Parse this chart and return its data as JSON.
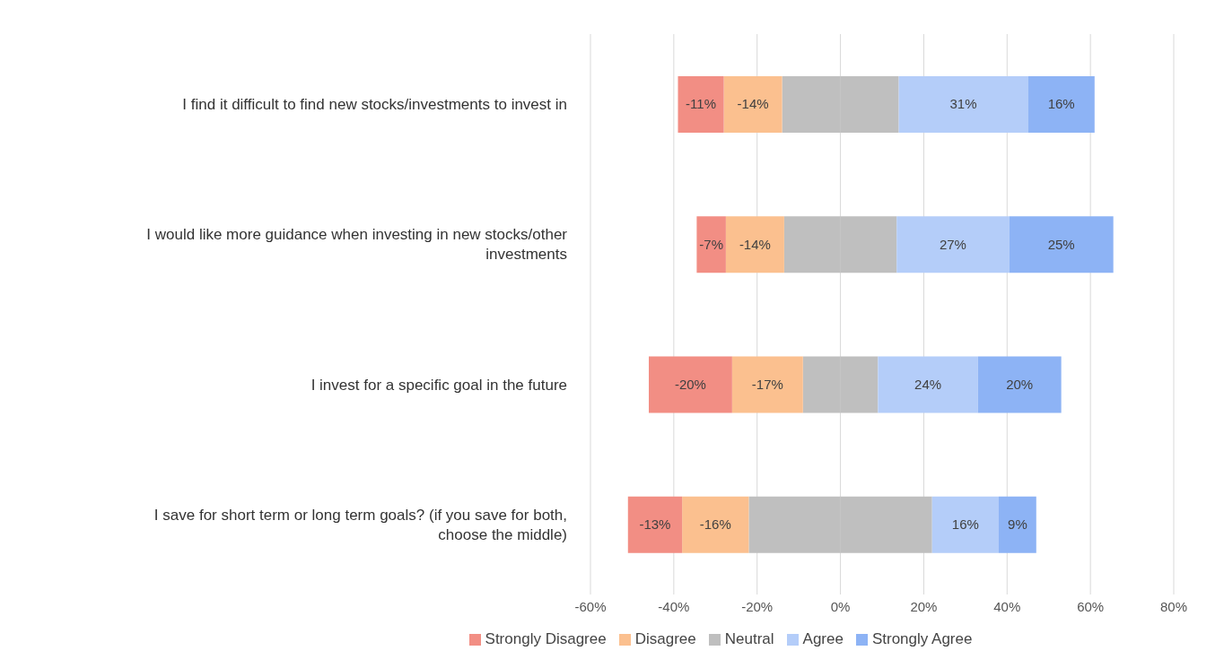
{
  "chart_data": {
    "type": "bar",
    "orientation": "horizontal",
    "stacked": true,
    "categories": [
      "I find it difficult to find new stocks/investments to invest in",
      "I would like more guidance when investing in new stocks/other investments",
      "I invest for a specific goal in the future",
      "I save for short term or long term goals? (if you save for both, choose the middle)"
    ],
    "series": [
      {
        "name": "Neutral",
        "color": "#bfbfbf",
        "values": [
          -14,
          -13.5,
          -9,
          -22
        ]
      },
      {
        "color": "#bfbfbf",
        "values": [
          14,
          13.5,
          9,
          22
        ]
      },
      {
        "name": "Disagree",
        "color": "#fbc08f",
        "values": [
          -14,
          -14,
          -17,
          -16
        ],
        "value_labels": [
          "-14%",
          "-14%",
          "-17%",
          "-16%"
        ]
      },
      {
        "name": "Strongly Disagree",
        "color": "#f28e84",
        "values": [
          -11,
          -7,
          -20,
          -13
        ],
        "value_labels": [
          "-11%",
          "-7%",
          "-20%",
          "-13%"
        ]
      },
      {
        "name": "Agree",
        "color": "#b4cdf9",
        "values": [
          31,
          27,
          24,
          16
        ],
        "value_labels": [
          "31%",
          "27%",
          "24%",
          "16%"
        ]
      },
      {
        "name": "Strongly Agree",
        "color": "#8db3f5",
        "values": [
          16,
          25,
          20,
          9
        ],
        "value_labels": [
          "16%",
          "25%",
          "20%",
          "9%"
        ]
      }
    ],
    "xlim": [
      -60,
      80
    ],
    "xticks": [
      {
        "value": -60,
        "label": "-60%"
      },
      {
        "value": -40,
        "label": "-40%"
      },
      {
        "value": -20,
        "label": "-20%"
      },
      {
        "value": 0,
        "label": "0%"
      },
      {
        "value": 20,
        "label": "20%"
      },
      {
        "value": 40,
        "label": "40%"
      },
      {
        "value": 60,
        "label": "60%"
      },
      {
        "value": 80,
        "label": "80%"
      }
    ],
    "grid": "x",
    "legend": "bottom"
  }
}
